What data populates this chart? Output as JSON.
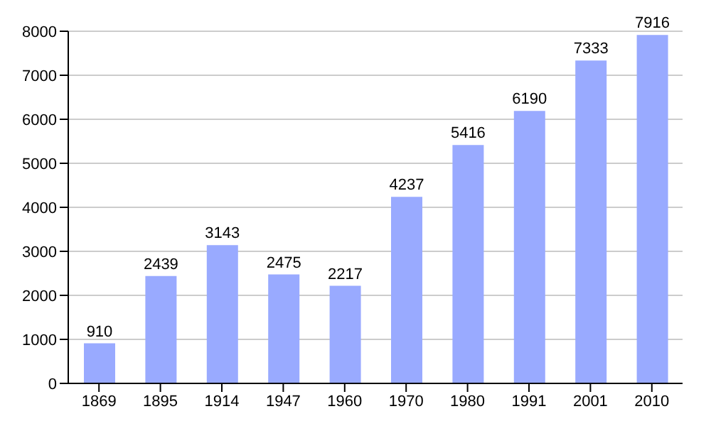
{
  "chart_data": {
    "type": "bar",
    "categories": [
      "1869",
      "1895",
      "1914",
      "1947",
      "1960",
      "1970",
      "1980",
      "1991",
      "2001",
      "2010"
    ],
    "values": [
      910,
      2439,
      3143,
      2475,
      2217,
      4237,
      5416,
      6190,
      7333,
      7916
    ],
    "color": "#99aaff",
    "ylim": [
      0,
      8000
    ],
    "yticks": [
      0,
      1000,
      2000,
      3000,
      4000,
      5000,
      6000,
      7000,
      8000
    ],
    "grid": "y",
    "data_labels": true
  }
}
